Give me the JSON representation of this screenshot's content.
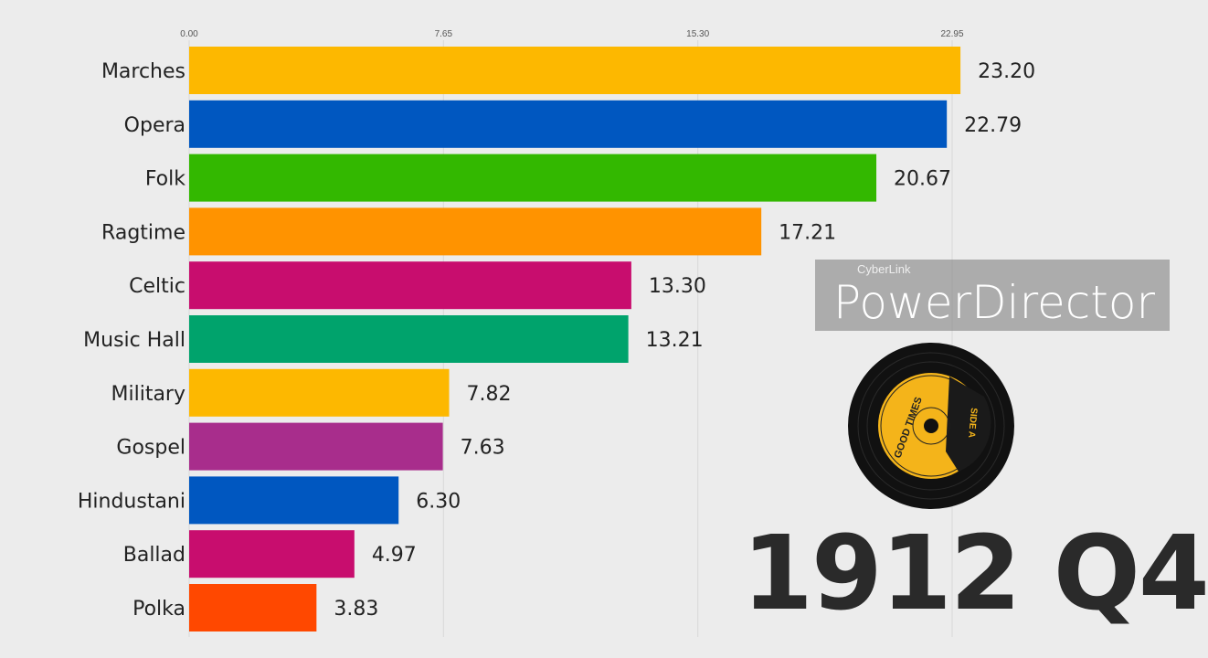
{
  "chart_data": {
    "type": "bar",
    "orientation": "horizontal",
    "period": "1912 Q4",
    "categories": [
      "Marches",
      "Opera",
      "Folk",
      "Ragtime",
      "Celtic",
      "Music Hall",
      "Military",
      "Gospel",
      "Hindustani",
      "Ballad",
      "Polka"
    ],
    "values": [
      23.2,
      22.79,
      20.67,
      17.21,
      13.3,
      13.21,
      7.82,
      7.63,
      6.3,
      4.97,
      3.83
    ],
    "value_labels": [
      "23.20",
      "22.79",
      "20.67",
      "17.21",
      "13.30",
      "13.21",
      "7.82",
      "7.63",
      "6.30",
      "4.97",
      "3.83"
    ],
    "colors": [
      "#fdb800",
      "#0057c0",
      "#33b800",
      "#ff9300",
      "#c80d6e",
      "#00a36c",
      "#fdb800",
      "#a82d8c",
      "#0057c0",
      "#c80d6e",
      "#ff4800"
    ],
    "xticks": [
      0,
      7.65,
      15.3,
      22.95
    ],
    "xtick_labels": [
      "0.00",
      "7.65",
      "15.30",
      "22.95"
    ],
    "xlim": [
      0,
      22.95
    ],
    "grid": true,
    "title": "",
    "xlabel": "",
    "ylabel": ""
  },
  "record_label": {
    "line1": "GOOD TIMES",
    "line2": "SIDE A"
  },
  "watermark": {
    "brand": "CyberLink",
    "product": "PowerDirector"
  }
}
